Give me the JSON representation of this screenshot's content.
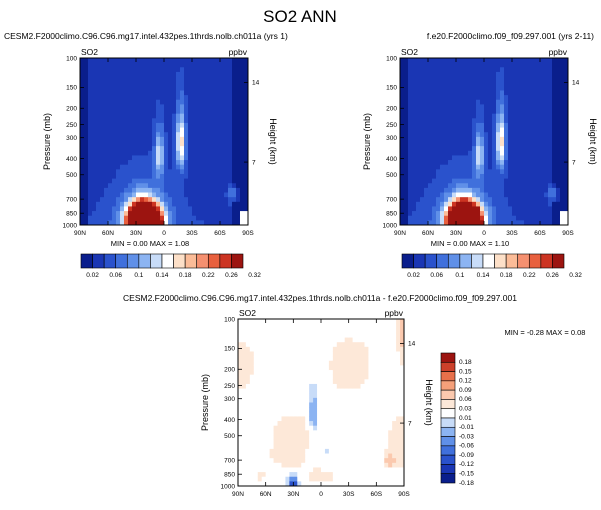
{
  "page_title": "SO2 ANN",
  "colors": {
    "background": "#ffffff",
    "text": "#000000",
    "frame": "#000000",
    "abs_scale": [
      "#0a1e8c",
      "#1a36b4",
      "#2a52cc",
      "#4070dc",
      "#6090e8",
      "#8cb4f2",
      "#c8dcf8",
      "#ffffff",
      "#fde0c8",
      "#fbbc98",
      "#f59070",
      "#e8603e",
      "#cc3422",
      "#9c1410"
    ],
    "diff_scale": [
      "#0a1e8c",
      "#1a36b4",
      "#2a52cc",
      "#4070dc",
      "#6090e8",
      "#8cb4f2",
      "#c8dcf8",
      "#ffffff",
      "#fde8d8",
      "#fbc9ae",
      "#f5a07a",
      "#e8704a",
      "#cc402a",
      "#9c1410"
    ]
  },
  "chart_data": [
    {
      "id": "panel-test",
      "type": "heatmap",
      "title": "CESM2.F2000climo.C96.C96.mg17.intel.432pes.1thrds.nolb.ch011a (yrs 1)",
      "variable": "SO2",
      "units": "ppbv",
      "ylabel": "Pressure (mb)",
      "ylabel_right": "Height (km)",
      "x_ticks": [
        "90N",
        "60N",
        "30N",
        "0",
        "30S",
        "60S",
        "90S"
      ],
      "x_values": [
        90,
        60,
        30,
        0,
        -30,
        -60,
        -90
      ],
      "y_ticks": [
        100,
        150,
        200,
        250,
        300,
        400,
        500,
        700,
        850,
        1000
      ],
      "y_ticks_right": [
        14,
        7
      ],
      "ylim": [
        1000,
        100
      ],
      "stats": {
        "min_label": "MIN =",
        "min": "0.00",
        "max_label": "MAX =",
        "max": "1.08"
      },
      "features": [
        {
          "kind": "plume",
          "lat": 22,
          "pressure": 950,
          "peak": 1.08
        },
        {
          "kind": "column",
          "lat": -18,
          "pressure": 320,
          "peak": 0.14
        },
        {
          "kind": "column",
          "lat": 5,
          "pressure": 380,
          "peak": 0.1
        },
        {
          "kind": "spot",
          "lat": -75,
          "pressure": 650,
          "peak": 0.08
        }
      ]
    },
    {
      "id": "panel-control",
      "type": "heatmap",
      "title": "f.e20.F2000climo.f09_f09.297.001 (yrs 2-11)",
      "variable": "SO2",
      "units": "ppbv",
      "ylabel": "Pressure (mb)",
      "ylabel_right": "Height (km)",
      "x_ticks": [
        "90N",
        "60N",
        "30N",
        "0",
        "30S",
        "60S",
        "90S"
      ],
      "x_values": [
        90,
        60,
        30,
        0,
        -30,
        -60,
        -90
      ],
      "y_ticks": [
        100,
        150,
        200,
        250,
        300,
        400,
        500,
        700,
        850,
        1000
      ],
      "y_ticks_right": [
        14,
        7
      ],
      "ylim": [
        1000,
        100
      ],
      "stats": {
        "min_label": "MIN =",
        "min": "0.00",
        "max_label": "MAX =",
        "max": "1.10"
      },
      "features": [
        {
          "kind": "plume",
          "lat": 22,
          "pressure": 950,
          "peak": 1.1
        },
        {
          "kind": "column",
          "lat": -18,
          "pressure": 320,
          "peak": 0.14
        },
        {
          "kind": "column",
          "lat": 5,
          "pressure": 380,
          "peak": 0.1
        },
        {
          "kind": "spot",
          "lat": -75,
          "pressure": 650,
          "peak": 0.08
        }
      ]
    },
    {
      "id": "panel-diff",
      "type": "heatmap",
      "title": "CESM2.F2000climo.C96.C96.mg17.intel.432pes.1thrds.nolb.ch011a - f.e20.F2000climo.f09_f09.297.001",
      "variable": "SO2",
      "units": "ppbv",
      "ylabel": "Pressure (mb)",
      "ylabel_right": "Height (km)",
      "x_ticks": [
        "90N",
        "60N",
        "30N",
        "0",
        "30S",
        "60S",
        "90S"
      ],
      "x_values": [
        90,
        60,
        30,
        0,
        -30,
        -60,
        -90
      ],
      "y_ticks": [
        100,
        150,
        200,
        250,
        300,
        400,
        500,
        700,
        850,
        1000
      ],
      "y_ticks_right": [
        14,
        7
      ],
      "ylim": [
        1000,
        100
      ],
      "stats": {
        "min_label": "MIN =",
        "min": "-0.28",
        "max_label": "MAX =",
        "max": "0.08"
      },
      "features": [
        {
          "kind": "spot",
          "lat": -75,
          "pressure": 700,
          "peak": 0.08
        },
        {
          "kind": "spot",
          "lat": -88,
          "pressure": 135,
          "peak": 0.06
        },
        {
          "kind": "negative",
          "lat": 8,
          "pressure": 360,
          "peak": -0.12
        },
        {
          "kind": "negative",
          "lat": 30,
          "pressure": 990,
          "peak": -0.28
        }
      ]
    }
  ],
  "colorbars": {
    "absolute": {
      "labels": [
        "0.02",
        "0.06",
        "0.1",
        "0.14",
        "0.18",
        "0.22",
        "0.26",
        "0.32"
      ],
      "levels": [
        0.02,
        0.04,
        0.06,
        0.08,
        0.1,
        0.12,
        0.14,
        0.16,
        0.18,
        0.2,
        0.22,
        0.24,
        0.26,
        0.32
      ]
    },
    "difference": {
      "labels": [
        "0.18",
        "0.15",
        "0.12",
        "0.09",
        "0.06",
        "0.03",
        "0.01",
        "-0.01",
        "-0.03",
        "-0.06",
        "-0.09",
        "-0.12",
        "-0.15",
        "-0.18"
      ],
      "levels": [
        -0.18,
        -0.15,
        -0.12,
        -0.09,
        -0.06,
        -0.03,
        -0.01,
        0.01,
        0.03,
        0.06,
        0.09,
        0.12,
        0.15,
        0.18
      ]
    }
  }
}
